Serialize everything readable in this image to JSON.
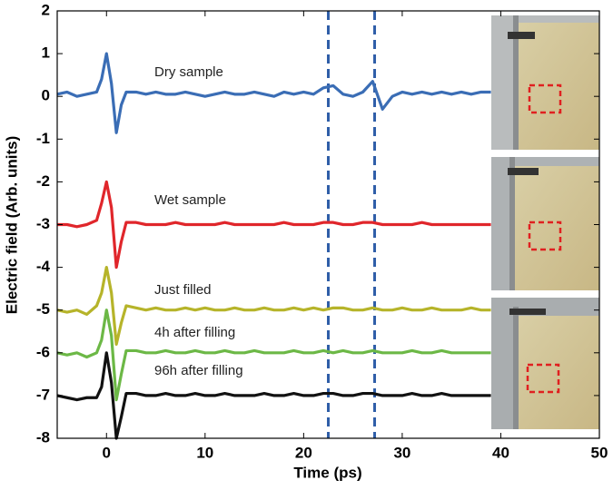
{
  "chart_data": {
    "type": "line",
    "xlabel": "Time (ps)",
    "ylabel": "Electric field (Arb. units)",
    "x": [
      -5,
      -4,
      -3,
      -2,
      -1,
      -0.5,
      0,
      0.5,
      1,
      1.5,
      2,
      3,
      4,
      5,
      6,
      7,
      8,
      9,
      10,
      11,
      12,
      13,
      14,
      15,
      16,
      17,
      18,
      19,
      20,
      21,
      22,
      23,
      24,
      25,
      26,
      27,
      28,
      29,
      30,
      31,
      32,
      33,
      34,
      35,
      36,
      37,
      38,
      39
    ],
    "series": [
      {
        "name": "Dry sample",
        "color": "#3a6db5",
        "values": [
          0.05,
          0.1,
          0.0,
          0.05,
          0.1,
          0.4,
          1.0,
          0.3,
          -0.85,
          -0.2,
          0.1,
          0.1,
          0.05,
          0.1,
          0.05,
          0.05,
          0.1,
          0.05,
          0.0,
          0.05,
          0.1,
          0.05,
          0.05,
          0.1,
          0.05,
          0.0,
          0.1,
          0.05,
          0.1,
          0.05,
          0.2,
          0.25,
          0.05,
          0.0,
          0.1,
          0.35,
          -0.3,
          0.0,
          0.1,
          0.05,
          0.1,
          0.05,
          0.1,
          0.05,
          0.1,
          0.05,
          0.1,
          0.1
        ]
      },
      {
        "name": "Wet sample",
        "color": "#e0262b",
        "values": [
          -3.0,
          -3.0,
          -3.05,
          -3.0,
          -2.9,
          -2.5,
          -2.0,
          -2.6,
          -4.0,
          -3.4,
          -2.95,
          -2.95,
          -3.0,
          -3.0,
          -3.0,
          -2.95,
          -3.0,
          -3.0,
          -3.0,
          -3.0,
          -2.95,
          -3.0,
          -3.0,
          -3.0,
          -3.0,
          -3.0,
          -2.95,
          -3.0,
          -3.0,
          -3.0,
          -2.95,
          -2.95,
          -3.0,
          -3.0,
          -2.95,
          -2.95,
          -3.0,
          -3.0,
          -3.0,
          -3.0,
          -2.95,
          -3.0,
          -3.0,
          -3.0,
          -3.0,
          -3.0,
          -3.0,
          -3.0
        ]
      },
      {
        "name": "Just filled",
        "color": "#b6b42a",
        "values": [
          -5.0,
          -5.05,
          -5.0,
          -5.1,
          -4.9,
          -4.6,
          -4.0,
          -4.6,
          -5.8,
          -5.3,
          -4.9,
          -4.95,
          -5.0,
          -4.95,
          -5.0,
          -5.0,
          -4.95,
          -5.0,
          -4.95,
          -5.0,
          -5.0,
          -4.95,
          -5.0,
          -5.0,
          -4.95,
          -5.0,
          -5.0,
          -4.95,
          -5.0,
          -4.95,
          -5.0,
          -4.95,
          -4.95,
          -5.0,
          -5.0,
          -4.95,
          -5.0,
          -5.0,
          -4.95,
          -5.0,
          -5.0,
          -4.95,
          -5.0,
          -5.0,
          -5.0,
          -4.95,
          -5.0,
          -5.0
        ]
      },
      {
        "name": "4h after filling",
        "color": "#6cb846",
        "values": [
          -6.0,
          -6.05,
          -6.0,
          -6.1,
          -6.0,
          -5.7,
          -5.0,
          -5.6,
          -7.1,
          -6.5,
          -5.95,
          -5.95,
          -6.0,
          -6.0,
          -5.95,
          -6.0,
          -6.0,
          -5.95,
          -6.0,
          -6.0,
          -5.95,
          -6.0,
          -6.0,
          -5.95,
          -6.0,
          -6.0,
          -6.0,
          -5.95,
          -6.0,
          -6.0,
          -5.95,
          -6.0,
          -5.95,
          -6.0,
          -6.0,
          -5.95,
          -6.0,
          -6.0,
          -6.0,
          -5.95,
          -6.0,
          -6.0,
          -5.95,
          -6.0,
          -6.0,
          -6.0,
          -6.0,
          -6.0
        ]
      },
      {
        "name": "96h after filling",
        "color": "#111111",
        "values": [
          -7.0,
          -7.05,
          -7.1,
          -7.05,
          -7.05,
          -6.8,
          -6.0,
          -6.7,
          -8.0,
          -7.5,
          -6.95,
          -6.95,
          -7.0,
          -7.0,
          -6.95,
          -7.0,
          -7.0,
          -6.95,
          -7.0,
          -7.0,
          -6.95,
          -7.0,
          -7.0,
          -7.0,
          -6.95,
          -7.0,
          -7.0,
          -6.95,
          -7.0,
          -7.0,
          -6.95,
          -6.95,
          -7.0,
          -7.0,
          -6.95,
          -6.95,
          -7.0,
          -7.0,
          -7.0,
          -6.95,
          -7.0,
          -7.0,
          -6.95,
          -7.0,
          -7.0,
          -7.0,
          -7.0,
          -7.0
        ]
      }
    ],
    "vlines": [
      22.5,
      27.2
    ],
    "vline_color": "#2f5ea8",
    "xlim": [
      -5,
      50
    ],
    "xticks": [
      0,
      10,
      20,
      30,
      40,
      50
    ],
    "ylim": [
      -8,
      2
    ],
    "yticks": [
      2,
      1,
      0,
      -1,
      -2,
      -3,
      -4,
      -5,
      -6,
      -7,
      -8
    ],
    "grid": false
  }
}
